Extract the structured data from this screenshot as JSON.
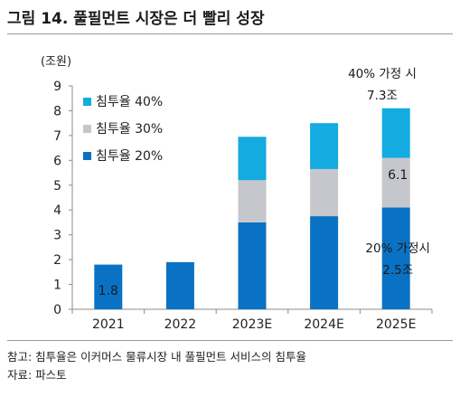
{
  "figure": {
    "title": "그림 14. 풀필먼트 시장은 더 빨리 성장",
    "note": "참고: 침투율은 이커머스 물류시장 내 풀필먼트 서비스의 침투율",
    "source": "자료: 파스토"
  },
  "chart_data": {
    "type": "bar",
    "stacked": true,
    "categories": [
      "2021",
      "2022",
      "2023E",
      "2024E",
      "2025E"
    ],
    "unit_label": "(조원)",
    "ylim": [
      0,
      9
    ],
    "yticks": [
      "0",
      "1",
      "2",
      "3",
      "4",
      "5",
      "6",
      "7",
      "8",
      "9"
    ],
    "grid": false,
    "legend_position": "top-left",
    "series": [
      {
        "name": "침투율 20%",
        "color": "#0a72c4",
        "values": [
          1.8,
          1.9,
          3.5,
          3.75,
          4.1
        ]
      },
      {
        "name": "침투율 30%",
        "color": "#c6c7cc",
        "values": [
          0,
          0,
          1.7,
          1.9,
          2.0
        ]
      },
      {
        "name": "침투율 40%",
        "color": "#13abe0",
        "values": [
          0,
          0,
          1.75,
          1.85,
          2.0
        ]
      }
    ],
    "legend_order": [
      2,
      1,
      0
    ],
    "annotations": {
      "bar_2021": "1.8",
      "bar_2025_mid": "6.1",
      "top_line1": "40% 가정 시",
      "top_line2": "7.3조",
      "low_line1": "20% 가정시",
      "low_line2": "2.5조"
    }
  }
}
